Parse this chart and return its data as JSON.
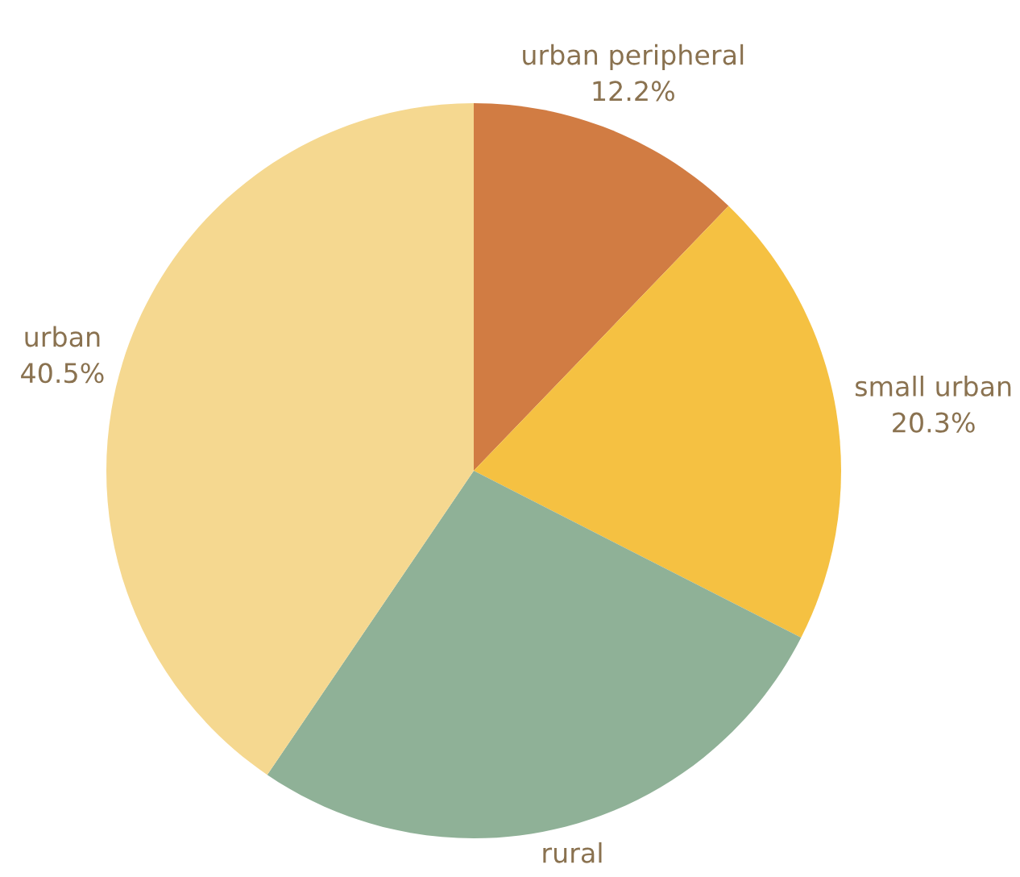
{
  "chart_data": {
    "type": "pie",
    "categories": [
      "urban peripheral",
      "small urban",
      "rural",
      "urban"
    ],
    "values": [
      12.2,
      20.3,
      27.0,
      40.5
    ],
    "value_labels": [
      "12.2%",
      "20.3%",
      null,
      "40.5%"
    ],
    "colors": [
      "#d17c43",
      "#f5c142",
      "#8fb197",
      "#f5d890"
    ],
    "legend": false
  }
}
